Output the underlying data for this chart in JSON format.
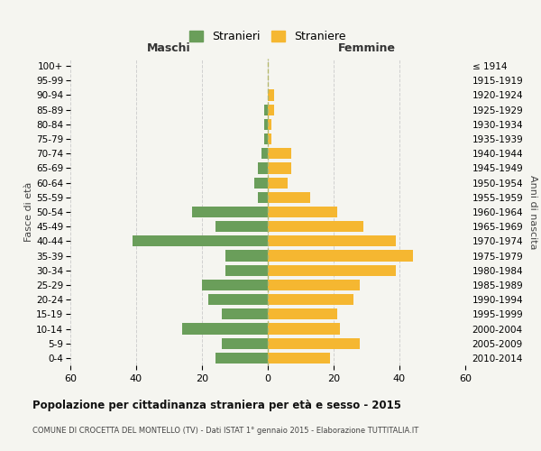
{
  "age_groups": [
    "0-4",
    "5-9",
    "10-14",
    "15-19",
    "20-24",
    "25-29",
    "30-34",
    "35-39",
    "40-44",
    "45-49",
    "50-54",
    "55-59",
    "60-64",
    "65-69",
    "70-74",
    "75-79",
    "80-84",
    "85-89",
    "90-94",
    "95-99",
    "100+"
  ],
  "birth_years": [
    "2010-2014",
    "2005-2009",
    "2000-2004",
    "1995-1999",
    "1990-1994",
    "1985-1989",
    "1980-1984",
    "1975-1979",
    "1970-1974",
    "1965-1969",
    "1960-1964",
    "1955-1959",
    "1950-1954",
    "1945-1949",
    "1940-1944",
    "1935-1939",
    "1930-1934",
    "1925-1929",
    "1920-1924",
    "1915-1919",
    "≤ 1914"
  ],
  "maschi": [
    16,
    14,
    26,
    14,
    18,
    20,
    13,
    13,
    41,
    16,
    23,
    3,
    4,
    3,
    2,
    1,
    1,
    1,
    0,
    0,
    0
  ],
  "femmine": [
    19,
    28,
    22,
    21,
    26,
    28,
    39,
    44,
    39,
    29,
    21,
    13,
    6,
    7,
    7,
    1,
    1,
    2,
    2,
    0,
    0
  ],
  "maschi_color": "#6a9e5a",
  "femmine_color": "#f5b731",
  "center_line_color": "#b5b86e",
  "grid_color": "#d0d0d0",
  "bg_color": "#f5f5f0",
  "title": "Popolazione per cittadinanza straniera per età e sesso - 2015",
  "subtitle": "COMUNE DI CROCETTA DEL MONTELLO (TV) - Dati ISTAT 1° gennaio 2015 - Elaborazione TUTTITALIA.IT",
  "xlabel_left": "Maschi",
  "xlabel_right": "Femmine",
  "ylabel_left": "Fasce di età",
  "ylabel_right": "Anni di nascita",
  "legend_maschi": "Stranieri",
  "legend_femmine": "Straniere",
  "xlim": 60,
  "bar_height": 0.75
}
